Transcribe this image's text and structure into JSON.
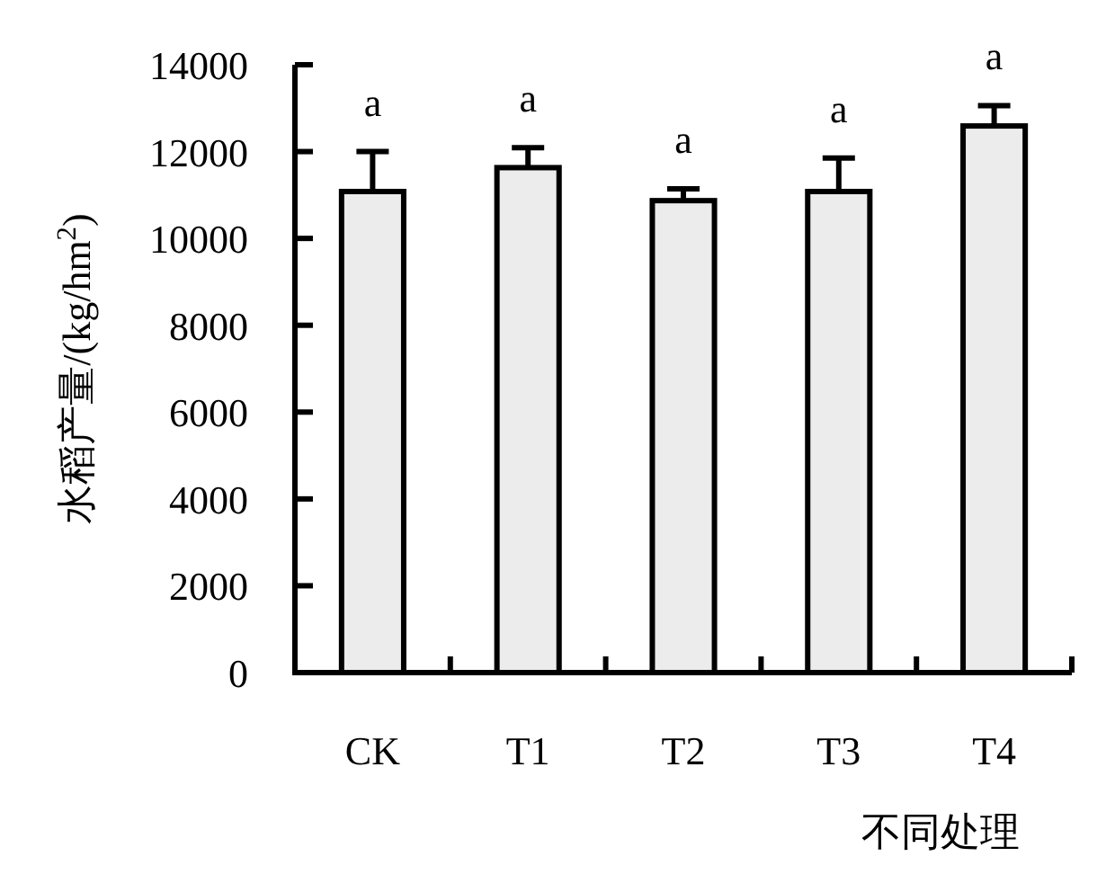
{
  "chart_data": {
    "type": "bar",
    "xlabel": "不同处理",
    "ylabel": "水稻产量/(kg/hm$^{2}$)",
    "categories": [
      "CK",
      "T1",
      "T2",
      "T3",
      "T4"
    ],
    "values": [
      11080,
      11630,
      10870,
      11080,
      12590
    ],
    "errors": [
      920,
      460,
      270,
      770,
      470
    ],
    "color": "#ececec",
    "ylim": [
      0,
      14000
    ],
    "yticks": [
      0,
      2000,
      4000,
      6000,
      8000,
      10000,
      12000,
      14000
    ],
    "grid": false,
    "annotations": [
      {
        "text": "a",
        "x": "CK",
        "y": 12000
      },
      {
        "text": "a",
        "x": "T1",
        "y": 12090
      },
      {
        "text": "a",
        "x": "T2",
        "y": 11140
      },
      {
        "text": "a",
        "x": "T3",
        "y": 11850
      },
      {
        "text": "a",
        "x": "T4",
        "y": 13060
      }
    ]
  }
}
